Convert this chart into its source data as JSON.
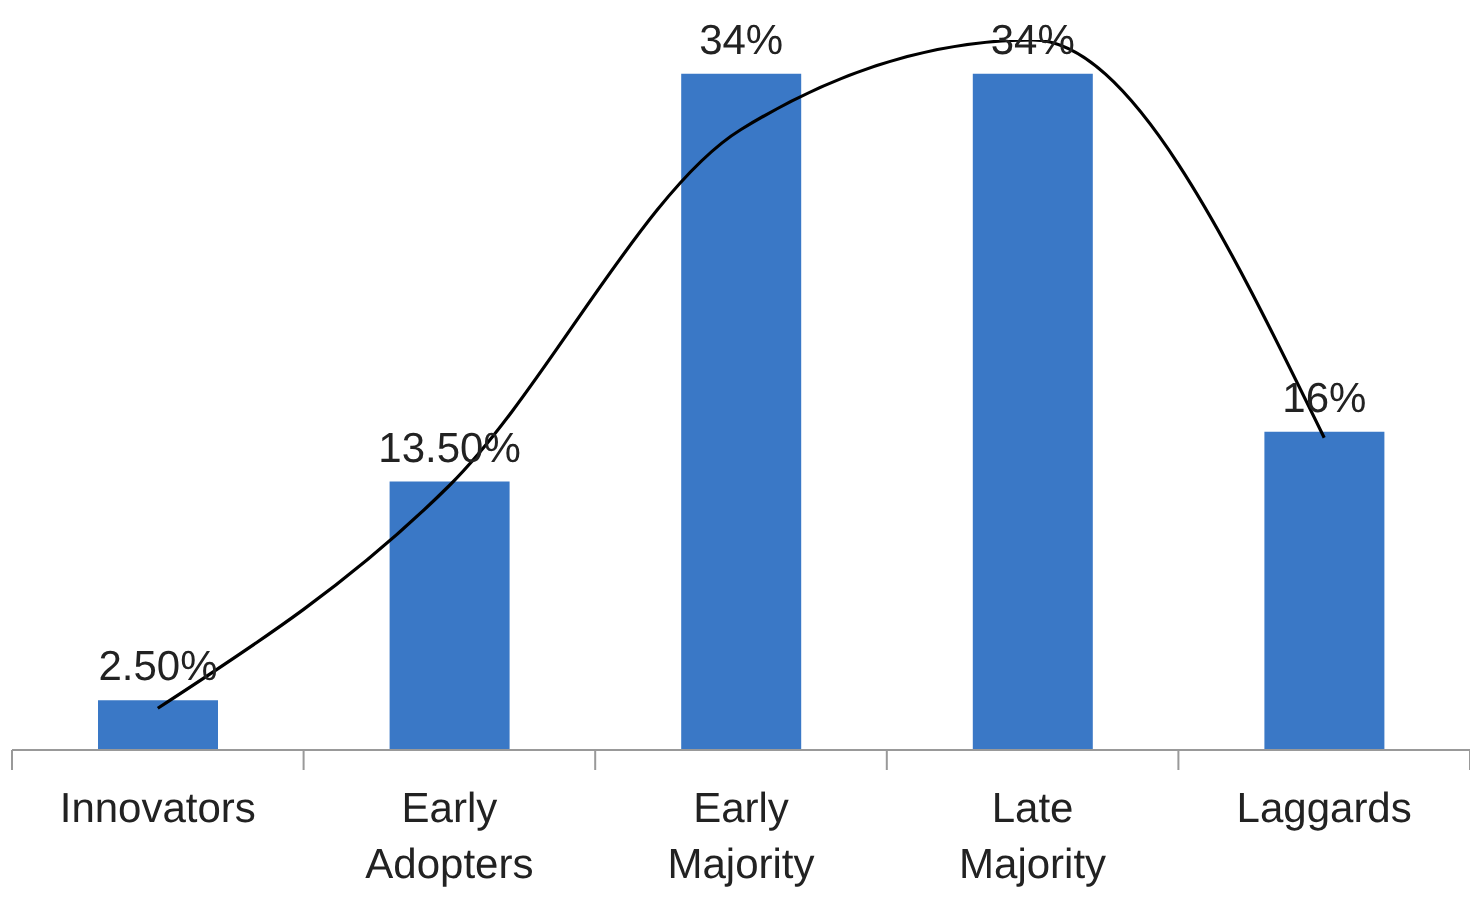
{
  "chart_data": {
    "type": "bar",
    "categories": [
      "Innovators",
      "Early Adopters",
      "Early Majority",
      "Late Majority",
      "Laggards"
    ],
    "tick_labels": "x",
    "grid": false,
    "legend": false,
    "series": [
      {
        "color": "#3a78c6",
        "values": [
          2.5,
          13.5,
          34,
          34,
          16
        ],
        "value_labels": [
          "2.50%",
          "13.50%",
          "34%",
          "34%",
          "16%"
        ]
      },
      {
        "type": "line",
        "color": "#000000",
        "marker": "none",
        "line_style": "solid",
        "values": [
          2.1,
          13.3,
          31.2,
          35.7,
          15.7
        ]
      }
    ]
  }
}
